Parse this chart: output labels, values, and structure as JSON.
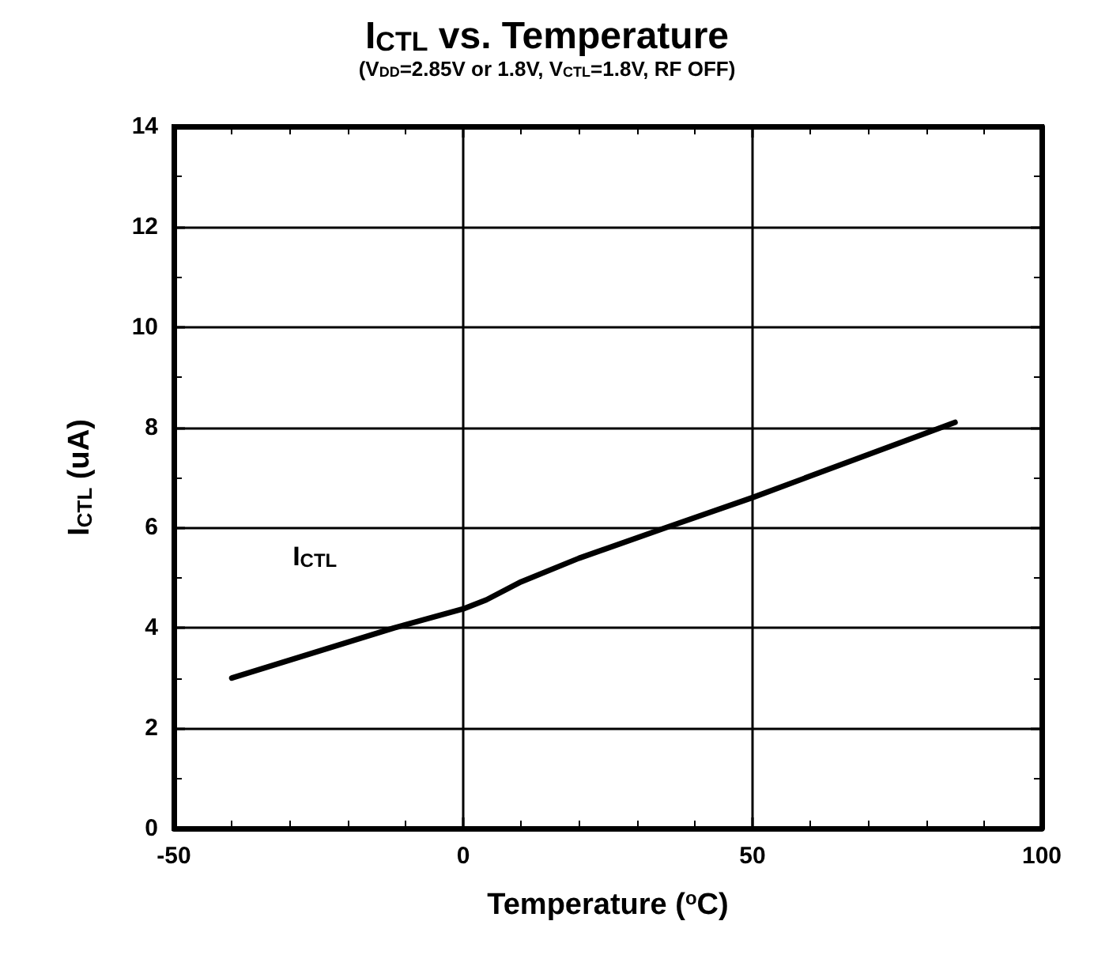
{
  "chart_data": {
    "type": "line",
    "title": "I$_{CTL}$ vs. Temperature",
    "subtitle": "(V$_{DD}$=2.85V or 1.8V, V$_{CTL}$=1.8V, RF OFF)",
    "xlabel": "Temperature ($^{o}$C)",
    "ylabel": "I$_{CTL}$ (uA)",
    "xlim": [
      -50,
      100
    ],
    "xticks": [
      -50,
      0,
      50,
      100
    ],
    "ylim": [
      0,
      14
    ],
    "yticks": [
      0,
      2,
      4,
      6,
      8,
      10,
      12,
      14
    ],
    "grid": true,
    "legend": false,
    "marker": "none",
    "line_style": "solid",
    "series": [
      {
        "name": "I$_{CTL}$",
        "color": "#000000",
        "x": [
          -40,
          -12,
          0,
          4,
          10,
          20,
          35,
          50,
          85
        ],
        "values": [
          3.0,
          4.0,
          4.38,
          4.56,
          4.92,
          5.39,
          6.0,
          6.6,
          8.1
        ]
      }
    ]
  }
}
